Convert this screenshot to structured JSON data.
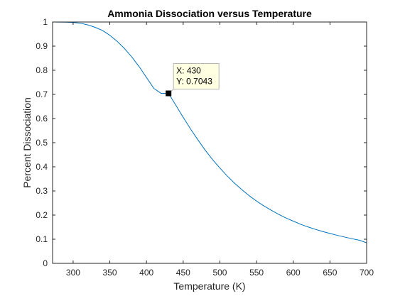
{
  "chart_data": {
    "type": "line",
    "title": "Ammonia Dissociation versus Temperature",
    "xlabel": "Temperature (K)",
    "ylabel": "Percent Dissociation",
    "xlim": [
      272,
      700
    ],
    "ylim": [
      0,
      1
    ],
    "x_ticks": [
      300,
      350,
      400,
      450,
      500,
      550,
      600,
      650,
      700
    ],
    "y_ticks": [
      0,
      0.1,
      0.2,
      0.3,
      0.4,
      0.5,
      0.6,
      0.7,
      0.8,
      0.9,
      1
    ],
    "x_tick_labels": [
      "300",
      "350",
      "400",
      "450",
      "500",
      "550",
      "600",
      "650",
      "700"
    ],
    "y_tick_labels": [
      "0",
      "0.1",
      "0.2",
      "0.3",
      "0.4",
      "0.5",
      "0.6",
      "0.7",
      "0.8",
      "0.9",
      "1"
    ],
    "grid": false,
    "box": true,
    "series": [
      {
        "color": "#0072bd",
        "x": [
          272,
          280,
          290,
          300,
          310,
          320,
          330,
          340,
          350,
          360,
          370,
          380,
          390,
          400,
          410,
          420,
          430,
          440,
          450,
          460,
          470,
          480,
          490,
          500,
          510,
          520,
          530,
          540,
          550,
          560,
          570,
          580,
          590,
          600,
          610,
          620,
          630,
          640,
          650,
          660,
          670,
          680,
          690,
          700
        ],
        "y": [
          1.0,
          0.9998,
          0.9993,
          0.998,
          0.995,
          0.988,
          0.978,
          0.965,
          0.945,
          0.92,
          0.89,
          0.855,
          0.815,
          0.77,
          0.725,
          0.7043,
          0.7043,
          0.655,
          0.605,
          0.557,
          0.512,
          0.469,
          0.43,
          0.395,
          0.362,
          0.332,
          0.305,
          0.28,
          0.258,
          0.238,
          0.22,
          0.203,
          0.188,
          0.175,
          0.162,
          0.151,
          0.141,
          0.132,
          0.124,
          0.116,
          0.109,
          0.102,
          0.096,
          0.085
        ]
      }
    ],
    "datatip": {
      "x": 430,
      "y": 0.7043,
      "x_text": "X: 430",
      "y_text": "Y: 0.7043",
      "background": "#ffffe1",
      "border": "#b3b3b3",
      "marker_color": "#000000"
    }
  }
}
